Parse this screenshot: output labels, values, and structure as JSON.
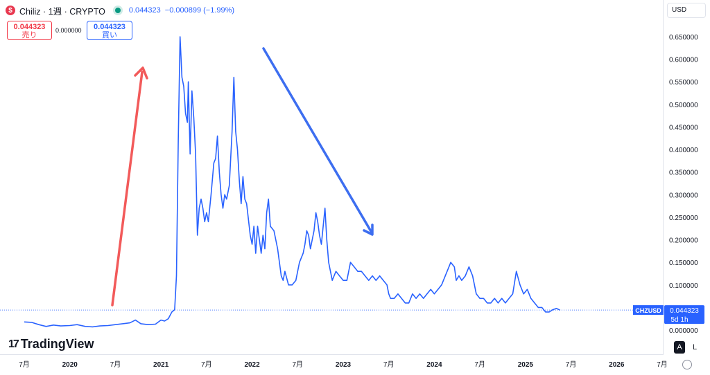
{
  "header": {
    "symbol": "Chiliz · 1週 · CRYPTO",
    "logo_letter": "$",
    "price": "0.044323",
    "change": "−0.000899 (−1.99%)",
    "currency": "USD"
  },
  "trade": {
    "sell_price": "0.044323",
    "sell_label": "売り",
    "spread": "0.000000",
    "buy_price": "0.044323",
    "buy_label": "買い"
  },
  "brand": "TradingView",
  "scale": {
    "a": "A",
    "l": "L"
  },
  "colors": {
    "line": "#2962ff",
    "up_arrow": "#f25a5a",
    "down_arrow": "#3d6ef0",
    "tag": "#2962ff"
  },
  "chart_data": {
    "type": "line",
    "ylim": [
      -0.02,
      0.67
    ],
    "y_ticks": [
      0.0,
      0.05,
      0.1,
      0.15,
      0.2,
      0.25,
      0.3,
      0.35,
      0.4,
      0.45,
      0.5,
      0.55,
      0.6,
      0.65
    ],
    "y_tick_labels": [
      "0.000000",
      "0.050000",
      "0.100000",
      "0.150000",
      "0.200000",
      "0.250000",
      "0.300000",
      "0.350000",
      "0.400000",
      "0.450000",
      "0.500000",
      "0.550000",
      "0.600000",
      "0.650000"
    ],
    "x_ticks": [
      {
        "x": 2019.5,
        "label": "7月"
      },
      {
        "x": 2020.0,
        "label": "2020"
      },
      {
        "x": 2020.5,
        "label": "7月"
      },
      {
        "x": 2021.0,
        "label": "2021"
      },
      {
        "x": 2021.5,
        "label": "7月"
      },
      {
        "x": 2022.0,
        "label": "2022"
      },
      {
        "x": 2022.5,
        "label": "7月"
      },
      {
        "x": 2023.0,
        "label": "2023"
      },
      {
        "x": 2023.5,
        "label": "7月"
      },
      {
        "x": 2024.0,
        "label": "2024"
      },
      {
        "x": 2024.5,
        "label": "7月"
      },
      {
        "x": 2025.0,
        "label": "2025"
      },
      {
        "x": 2025.5,
        "label": "7月"
      },
      {
        "x": 2026.0,
        "label": "2026"
      },
      {
        "x": 2026.5,
        "label": "7月"
      }
    ],
    "xlim": [
      2019.25,
      2026.72
    ],
    "series": [
      {
        "name": "CHZUSD",
        "points": [
          [
            2019.5,
            0.018
          ],
          [
            2019.58,
            0.017
          ],
          [
            2019.66,
            0.012
          ],
          [
            2019.74,
            0.008
          ],
          [
            2019.82,
            0.011
          ],
          [
            2019.9,
            0.009
          ],
          [
            2020.0,
            0.01
          ],
          [
            2020.08,
            0.012
          ],
          [
            2020.17,
            0.008
          ],
          [
            2020.25,
            0.007
          ],
          [
            2020.33,
            0.009
          ],
          [
            2020.42,
            0.01
          ],
          [
            2020.5,
            0.012
          ],
          [
            2020.58,
            0.014
          ],
          [
            2020.66,
            0.016
          ],
          [
            2020.72,
            0.022
          ],
          [
            2020.78,
            0.014
          ],
          [
            2020.86,
            0.012
          ],
          [
            2020.94,
            0.013
          ],
          [
            2021.0,
            0.022
          ],
          [
            2021.04,
            0.02
          ],
          [
            2021.08,
            0.025
          ],
          [
            2021.12,
            0.04
          ],
          [
            2021.15,
            0.045
          ],
          [
            2021.17,
            0.12
          ],
          [
            2021.19,
            0.42
          ],
          [
            2021.21,
            0.65
          ],
          [
            2021.23,
            0.56
          ],
          [
            2021.25,
            0.54
          ],
          [
            2021.27,
            0.48
          ],
          [
            2021.29,
            0.46
          ],
          [
            2021.3,
            0.55
          ],
          [
            2021.32,
            0.39
          ],
          [
            2021.34,
            0.53
          ],
          [
            2021.36,
            0.47
          ],
          [
            2021.38,
            0.39
          ],
          [
            2021.4,
            0.21
          ],
          [
            2021.42,
            0.27
          ],
          [
            2021.44,
            0.29
          ],
          [
            2021.46,
            0.27
          ],
          [
            2021.48,
            0.24
          ],
          [
            2021.5,
            0.26
          ],
          [
            2021.52,
            0.24
          ],
          [
            2021.55,
            0.3
          ],
          [
            2021.58,
            0.37
          ],
          [
            2021.6,
            0.38
          ],
          [
            2021.62,
            0.43
          ],
          [
            2021.64,
            0.35
          ],
          [
            2021.66,
            0.3
          ],
          [
            2021.68,
            0.27
          ],
          [
            2021.7,
            0.3
          ],
          [
            2021.72,
            0.29
          ],
          [
            2021.75,
            0.32
          ],
          [
            2021.78,
            0.44
          ],
          [
            2021.8,
            0.56
          ],
          [
            2021.82,
            0.44
          ],
          [
            2021.84,
            0.4
          ],
          [
            2021.86,
            0.33
          ],
          [
            2021.88,
            0.28
          ],
          [
            2021.9,
            0.34
          ],
          [
            2021.92,
            0.29
          ],
          [
            2021.94,
            0.28
          ],
          [
            2021.98,
            0.21
          ],
          [
            2022.0,
            0.19
          ],
          [
            2022.02,
            0.23
          ],
          [
            2022.04,
            0.17
          ],
          [
            2022.06,
            0.23
          ],
          [
            2022.08,
            0.2
          ],
          [
            2022.1,
            0.17
          ],
          [
            2022.12,
            0.21
          ],
          [
            2022.14,
            0.18
          ],
          [
            2022.16,
            0.26
          ],
          [
            2022.18,
            0.29
          ],
          [
            2022.2,
            0.23
          ],
          [
            2022.24,
            0.22
          ],
          [
            2022.28,
            0.18
          ],
          [
            2022.32,
            0.12
          ],
          [
            2022.34,
            0.11
          ],
          [
            2022.36,
            0.13
          ],
          [
            2022.4,
            0.1
          ],
          [
            2022.44,
            0.1
          ],
          [
            2022.48,
            0.11
          ],
          [
            2022.52,
            0.15
          ],
          [
            2022.56,
            0.17
          ],
          [
            2022.58,
            0.19
          ],
          [
            2022.6,
            0.22
          ],
          [
            2022.62,
            0.21
          ],
          [
            2022.64,
            0.18
          ],
          [
            2022.66,
            0.2
          ],
          [
            2022.68,
            0.22
          ],
          [
            2022.7,
            0.26
          ],
          [
            2022.72,
            0.24
          ],
          [
            2022.74,
            0.21
          ],
          [
            2022.76,
            0.19
          ],
          [
            2022.78,
            0.23
          ],
          [
            2022.8,
            0.27
          ],
          [
            2022.82,
            0.2
          ],
          [
            2022.84,
            0.15
          ],
          [
            2022.88,
            0.11
          ],
          [
            2022.92,
            0.13
          ],
          [
            2022.96,
            0.12
          ],
          [
            2023.0,
            0.11
          ],
          [
            2023.04,
            0.11
          ],
          [
            2023.08,
            0.15
          ],
          [
            2023.12,
            0.14
          ],
          [
            2023.16,
            0.13
          ],
          [
            2023.2,
            0.13
          ],
          [
            2023.24,
            0.12
          ],
          [
            2023.28,
            0.11
          ],
          [
            2023.32,
            0.12
          ],
          [
            2023.36,
            0.11
          ],
          [
            2023.4,
            0.12
          ],
          [
            2023.44,
            0.11
          ],
          [
            2023.48,
            0.1
          ],
          [
            2023.5,
            0.08
          ],
          [
            2023.52,
            0.07
          ],
          [
            2023.56,
            0.07
          ],
          [
            2023.6,
            0.08
          ],
          [
            2023.64,
            0.07
          ],
          [
            2023.68,
            0.06
          ],
          [
            2023.72,
            0.06
          ],
          [
            2023.76,
            0.08
          ],
          [
            2023.8,
            0.07
          ],
          [
            2023.84,
            0.08
          ],
          [
            2023.88,
            0.07
          ],
          [
            2023.92,
            0.08
          ],
          [
            2023.96,
            0.09
          ],
          [
            2024.0,
            0.08
          ],
          [
            2024.04,
            0.09
          ],
          [
            2024.08,
            0.1
          ],
          [
            2024.12,
            0.12
          ],
          [
            2024.16,
            0.14
          ],
          [
            2024.18,
            0.15
          ],
          [
            2024.22,
            0.14
          ],
          [
            2024.24,
            0.11
          ],
          [
            2024.27,
            0.12
          ],
          [
            2024.3,
            0.11
          ],
          [
            2024.34,
            0.12
          ],
          [
            2024.38,
            0.14
          ],
          [
            2024.42,
            0.12
          ],
          [
            2024.46,
            0.08
          ],
          [
            2024.5,
            0.07
          ],
          [
            2024.54,
            0.07
          ],
          [
            2024.58,
            0.06
          ],
          [
            2024.62,
            0.06
          ],
          [
            2024.66,
            0.07
          ],
          [
            2024.7,
            0.06
          ],
          [
            2024.74,
            0.07
          ],
          [
            2024.78,
            0.06
          ],
          [
            2024.82,
            0.07
          ],
          [
            2024.86,
            0.08
          ],
          [
            2024.9,
            0.13
          ],
          [
            2024.94,
            0.1
          ],
          [
            2024.98,
            0.08
          ],
          [
            2025.02,
            0.09
          ],
          [
            2025.06,
            0.07
          ],
          [
            2025.1,
            0.06
          ],
          [
            2025.14,
            0.05
          ],
          [
            2025.18,
            0.05
          ],
          [
            2025.22,
            0.04
          ],
          [
            2025.26,
            0.04
          ],
          [
            2025.3,
            0.045
          ],
          [
            2025.34,
            0.048
          ],
          [
            2025.38,
            0.044
          ]
        ]
      }
    ],
    "last_value_tag": {
      "symbol": "CHZUSD",
      "value": "0.044323",
      "countdown": "5d 1h"
    }
  }
}
